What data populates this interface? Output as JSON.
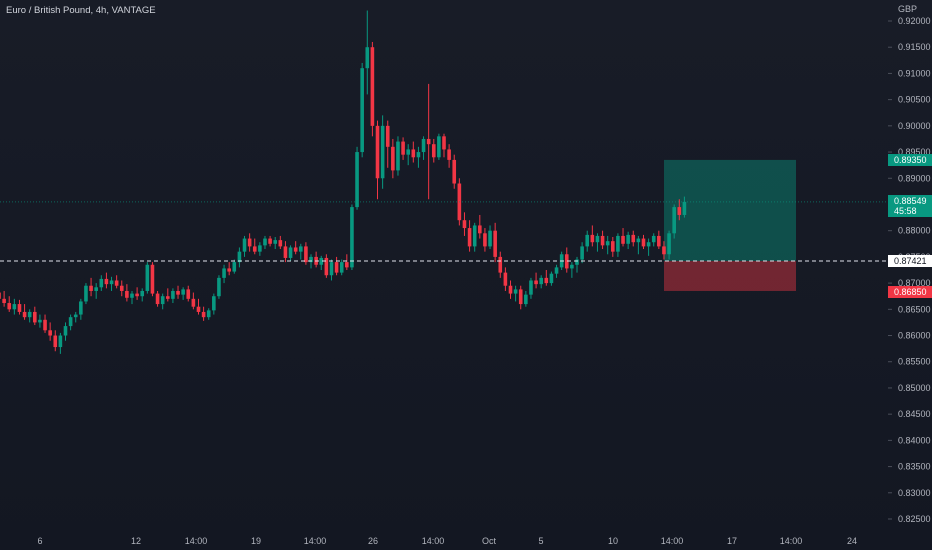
{
  "header": {
    "symbol_title": "Euro / British Pound, 4h, VANTAGE",
    "currency": "GBP"
  },
  "badges": {
    "current_price": "0.88549",
    "countdown": "45:58",
    "take_profit": "0.89350",
    "stop_loss": "0.86850",
    "entry": "0.87421"
  },
  "colors": {
    "up": "#089981",
    "down": "#f23645",
    "background": "#131722",
    "text": "#b2b5be",
    "grid": "#1e222d"
  },
  "chart_data": {
    "type": "candlestick",
    "title": "Euro / British Pound, 4h, VANTAGE",
    "xlabel": "",
    "ylabel": "",
    "ylim": [
      0.823,
      0.922
    ],
    "y_ticks": [
      "0.92000",
      "0.91500",
      "0.91000",
      "0.90500",
      "0.90000",
      "0.89500",
      "0.89000",
      "0.88500",
      "0.88000",
      "0.87500",
      "0.87000",
      "0.86500",
      "0.86000",
      "0.85500",
      "0.85000",
      "0.84500",
      "0.84000",
      "0.83500",
      "0.83000",
      "0.82500"
    ],
    "x_ticks": [
      "6",
      "12",
      "14:00",
      "19",
      "14:00",
      "26",
      "14:00",
      "Oct",
      "5",
      "10",
      "14:00",
      "17",
      "14:00",
      "24"
    ],
    "grid": false,
    "current_price": 0.88549,
    "position": {
      "side": "long",
      "entry": 0.87421,
      "take_profit": 0.8935,
      "stop_loss": 0.8685
    },
    "candles": [
      {
        "o": 0.8682,
        "h": 0.87,
        "l": 0.8665,
        "c": 0.867
      },
      {
        "o": 0.867,
        "h": 0.8685,
        "l": 0.8655,
        "c": 0.8662
      },
      {
        "o": 0.8662,
        "h": 0.8675,
        "l": 0.8645,
        "c": 0.865
      },
      {
        "o": 0.865,
        "h": 0.867,
        "l": 0.864,
        "c": 0.866
      },
      {
        "o": 0.866,
        "h": 0.8668,
        "l": 0.864,
        "c": 0.8645
      },
      {
        "o": 0.8645,
        "h": 0.866,
        "l": 0.863,
        "c": 0.8635
      },
      {
        "o": 0.8635,
        "h": 0.865,
        "l": 0.8625,
        "c": 0.8645
      },
      {
        "o": 0.8645,
        "h": 0.8655,
        "l": 0.862,
        "c": 0.8625
      },
      {
        "o": 0.8625,
        "h": 0.864,
        "l": 0.8615,
        "c": 0.863
      },
      {
        "o": 0.863,
        "h": 0.864,
        "l": 0.8605,
        "c": 0.861
      },
      {
        "o": 0.861,
        "h": 0.8625,
        "l": 0.859,
        "c": 0.86
      },
      {
        "o": 0.86,
        "h": 0.861,
        "l": 0.857,
        "c": 0.8578
      },
      {
        "o": 0.8578,
        "h": 0.8605,
        "l": 0.8565,
        "c": 0.86
      },
      {
        "o": 0.86,
        "h": 0.8625,
        "l": 0.859,
        "c": 0.8618
      },
      {
        "o": 0.8618,
        "h": 0.864,
        "l": 0.861,
        "c": 0.8635
      },
      {
        "o": 0.8635,
        "h": 0.8645,
        "l": 0.8625,
        "c": 0.864
      },
      {
        "o": 0.864,
        "h": 0.867,
        "l": 0.863,
        "c": 0.8665
      },
      {
        "o": 0.8665,
        "h": 0.87,
        "l": 0.866,
        "c": 0.8695
      },
      {
        "o": 0.8695,
        "h": 0.871,
        "l": 0.8675,
        "c": 0.8685
      },
      {
        "o": 0.8685,
        "h": 0.87,
        "l": 0.867,
        "c": 0.8692
      },
      {
        "o": 0.8692,
        "h": 0.8715,
        "l": 0.8685,
        "c": 0.8708
      },
      {
        "o": 0.8708,
        "h": 0.872,
        "l": 0.869,
        "c": 0.8698
      },
      {
        "o": 0.8698,
        "h": 0.8712,
        "l": 0.8685,
        "c": 0.8705
      },
      {
        "o": 0.8705,
        "h": 0.8715,
        "l": 0.869,
        "c": 0.8695
      },
      {
        "o": 0.8695,
        "h": 0.8705,
        "l": 0.8675,
        "c": 0.8685
      },
      {
        "o": 0.8685,
        "h": 0.8698,
        "l": 0.8665,
        "c": 0.8672
      },
      {
        "o": 0.8672,
        "h": 0.8685,
        "l": 0.866,
        "c": 0.868
      },
      {
        "o": 0.868,
        "h": 0.8692,
        "l": 0.8668,
        "c": 0.8675
      },
      {
        "o": 0.8675,
        "h": 0.869,
        "l": 0.8665,
        "c": 0.8685
      },
      {
        "o": 0.8685,
        "h": 0.874,
        "l": 0.868,
        "c": 0.8735
      },
      {
        "o": 0.8735,
        "h": 0.874,
        "l": 0.8675,
        "c": 0.868
      },
      {
        "o": 0.868,
        "h": 0.8685,
        "l": 0.8655,
        "c": 0.866
      },
      {
        "o": 0.866,
        "h": 0.868,
        "l": 0.865,
        "c": 0.8675
      },
      {
        "o": 0.8675,
        "h": 0.869,
        "l": 0.8665,
        "c": 0.867
      },
      {
        "o": 0.867,
        "h": 0.869,
        "l": 0.8662,
        "c": 0.8685
      },
      {
        "o": 0.8685,
        "h": 0.8695,
        "l": 0.867,
        "c": 0.8678
      },
      {
        "o": 0.8678,
        "h": 0.8692,
        "l": 0.8668,
        "c": 0.8688
      },
      {
        "o": 0.8688,
        "h": 0.8695,
        "l": 0.8665,
        "c": 0.867
      },
      {
        "o": 0.867,
        "h": 0.8682,
        "l": 0.865,
        "c": 0.8655
      },
      {
        "o": 0.8655,
        "h": 0.867,
        "l": 0.864,
        "c": 0.8645
      },
      {
        "o": 0.8645,
        "h": 0.8655,
        "l": 0.8628,
        "c": 0.8635
      },
      {
        "o": 0.8635,
        "h": 0.8652,
        "l": 0.863,
        "c": 0.8648
      },
      {
        "o": 0.8648,
        "h": 0.868,
        "l": 0.864,
        "c": 0.8675
      },
      {
        "o": 0.8675,
        "h": 0.8715,
        "l": 0.867,
        "c": 0.871
      },
      {
        "o": 0.871,
        "h": 0.8735,
        "l": 0.87,
        "c": 0.8728
      },
      {
        "o": 0.8728,
        "h": 0.874,
        "l": 0.8715,
        "c": 0.8722
      },
      {
        "o": 0.8722,
        "h": 0.8745,
        "l": 0.8718,
        "c": 0.874
      },
      {
        "o": 0.874,
        "h": 0.8768,
        "l": 0.873,
        "c": 0.876
      },
      {
        "o": 0.876,
        "h": 0.879,
        "l": 0.875,
        "c": 0.8785
      },
      {
        "o": 0.8785,
        "h": 0.8795,
        "l": 0.876,
        "c": 0.877
      },
      {
        "o": 0.877,
        "h": 0.8785,
        "l": 0.8755,
        "c": 0.876
      },
      {
        "o": 0.876,
        "h": 0.8778,
        "l": 0.8752,
        "c": 0.8772
      },
      {
        "o": 0.8772,
        "h": 0.879,
        "l": 0.8765,
        "c": 0.8785
      },
      {
        "o": 0.8785,
        "h": 0.879,
        "l": 0.877,
        "c": 0.8775
      },
      {
        "o": 0.8775,
        "h": 0.8788,
        "l": 0.8765,
        "c": 0.8782
      },
      {
        "o": 0.8782,
        "h": 0.879,
        "l": 0.8765,
        "c": 0.877
      },
      {
        "o": 0.877,
        "h": 0.878,
        "l": 0.874,
        "c": 0.8748
      },
      {
        "o": 0.8748,
        "h": 0.8772,
        "l": 0.8742,
        "c": 0.8768
      },
      {
        "o": 0.8768,
        "h": 0.878,
        "l": 0.8755,
        "c": 0.876
      },
      {
        "o": 0.876,
        "h": 0.8775,
        "l": 0.8745,
        "c": 0.877
      },
      {
        "o": 0.877,
        "h": 0.8778,
        "l": 0.8735,
        "c": 0.874
      },
      {
        "o": 0.874,
        "h": 0.8755,
        "l": 0.8728,
        "c": 0.875
      },
      {
        "o": 0.875,
        "h": 0.876,
        "l": 0.873,
        "c": 0.8735
      },
      {
        "o": 0.8735,
        "h": 0.8752,
        "l": 0.8725,
        "c": 0.8748
      },
      {
        "o": 0.8748,
        "h": 0.8755,
        "l": 0.871,
        "c": 0.8715
      },
      {
        "o": 0.8715,
        "h": 0.8745,
        "l": 0.8705,
        "c": 0.874
      },
      {
        "o": 0.874,
        "h": 0.875,
        "l": 0.8715,
        "c": 0.872
      },
      {
        "o": 0.872,
        "h": 0.8745,
        "l": 0.8715,
        "c": 0.874
      },
      {
        "o": 0.874,
        "h": 0.8755,
        "l": 0.8725,
        "c": 0.873
      },
      {
        "o": 0.873,
        "h": 0.885,
        "l": 0.8725,
        "c": 0.8845
      },
      {
        "o": 0.8845,
        "h": 0.896,
        "l": 0.884,
        "c": 0.895
      },
      {
        "o": 0.895,
        "h": 0.912,
        "l": 0.894,
        "c": 0.911
      },
      {
        "o": 0.911,
        "h": 0.922,
        "l": 0.906,
        "c": 0.915
      },
      {
        "o": 0.915,
        "h": 0.916,
        "l": 0.898,
        "c": 0.9
      },
      {
        "o": 0.9,
        "h": 0.901,
        "l": 0.886,
        "c": 0.89
      },
      {
        "o": 0.89,
        "h": 0.902,
        "l": 0.888,
        "c": 0.9
      },
      {
        "o": 0.9,
        "h": 0.901,
        "l": 0.892,
        "c": 0.896
      },
      {
        "o": 0.896,
        "h": 0.8975,
        "l": 0.89,
        "c": 0.8915
      },
      {
        "o": 0.8915,
        "h": 0.898,
        "l": 0.8905,
        "c": 0.897
      },
      {
        "o": 0.897,
        "h": 0.8978,
        "l": 0.8935,
        "c": 0.8945
      },
      {
        "o": 0.8945,
        "h": 0.8965,
        "l": 0.8925,
        "c": 0.8955
      },
      {
        "o": 0.8955,
        "h": 0.897,
        "l": 0.893,
        "c": 0.894
      },
      {
        "o": 0.894,
        "h": 0.896,
        "l": 0.892,
        "c": 0.895
      },
      {
        "o": 0.895,
        "h": 0.898,
        "l": 0.8935,
        "c": 0.8975
      },
      {
        "o": 0.8975,
        "h": 0.908,
        "l": 0.886,
        "c": 0.8965
      },
      {
        "o": 0.8965,
        "h": 0.8975,
        "l": 0.893,
        "c": 0.894
      },
      {
        "o": 0.894,
        "h": 0.8985,
        "l": 0.8935,
        "c": 0.898
      },
      {
        "o": 0.898,
        "h": 0.8985,
        "l": 0.894,
        "c": 0.8955
      },
      {
        "o": 0.8955,
        "h": 0.8965,
        "l": 0.892,
        "c": 0.8935
      },
      {
        "o": 0.8935,
        "h": 0.8945,
        "l": 0.888,
        "c": 0.889
      },
      {
        "o": 0.889,
        "h": 0.89,
        "l": 0.881,
        "c": 0.882
      },
      {
        "o": 0.882,
        "h": 0.8835,
        "l": 0.879,
        "c": 0.8805
      },
      {
        "o": 0.8805,
        "h": 0.882,
        "l": 0.876,
        "c": 0.877
      },
      {
        "o": 0.877,
        "h": 0.8815,
        "l": 0.876,
        "c": 0.881
      },
      {
        "o": 0.881,
        "h": 0.883,
        "l": 0.8785,
        "c": 0.8795
      },
      {
        "o": 0.8795,
        "h": 0.8805,
        "l": 0.876,
        "c": 0.877
      },
      {
        "o": 0.877,
        "h": 0.881,
        "l": 0.8765,
        "c": 0.88
      },
      {
        "o": 0.88,
        "h": 0.8815,
        "l": 0.874,
        "c": 0.875
      },
      {
        "o": 0.875,
        "h": 0.876,
        "l": 0.871,
        "c": 0.872
      },
      {
        "o": 0.872,
        "h": 0.873,
        "l": 0.8685,
        "c": 0.8695
      },
      {
        "o": 0.8695,
        "h": 0.8705,
        "l": 0.867,
        "c": 0.868
      },
      {
        "o": 0.868,
        "h": 0.8695,
        "l": 0.8665,
        "c": 0.8688
      },
      {
        "o": 0.8688,
        "h": 0.8695,
        "l": 0.865,
        "c": 0.866
      },
      {
        "o": 0.866,
        "h": 0.8685,
        "l": 0.8655,
        "c": 0.8678
      },
      {
        "o": 0.8678,
        "h": 0.871,
        "l": 0.867,
        "c": 0.8705
      },
      {
        "o": 0.8705,
        "h": 0.872,
        "l": 0.869,
        "c": 0.8698
      },
      {
        "o": 0.8698,
        "h": 0.8715,
        "l": 0.869,
        "c": 0.871
      },
      {
        "o": 0.871,
        "h": 0.8725,
        "l": 0.8695,
        "c": 0.87
      },
      {
        "o": 0.87,
        "h": 0.8722,
        "l": 0.8695,
        "c": 0.8718
      },
      {
        "o": 0.8718,
        "h": 0.8735,
        "l": 0.871,
        "c": 0.873
      },
      {
        "o": 0.873,
        "h": 0.876,
        "l": 0.8725,
        "c": 0.8755
      },
      {
        "o": 0.8755,
        "h": 0.8768,
        "l": 0.872,
        "c": 0.8728
      },
      {
        "o": 0.8728,
        "h": 0.874,
        "l": 0.871,
        "c": 0.8735
      },
      {
        "o": 0.8735,
        "h": 0.875,
        "l": 0.872,
        "c": 0.8745
      },
      {
        "o": 0.8745,
        "h": 0.8778,
        "l": 0.8738,
        "c": 0.877
      },
      {
        "o": 0.877,
        "h": 0.88,
        "l": 0.876,
        "c": 0.8792
      },
      {
        "o": 0.8792,
        "h": 0.881,
        "l": 0.877,
        "c": 0.8778
      },
      {
        "o": 0.8778,
        "h": 0.8795,
        "l": 0.876,
        "c": 0.879
      },
      {
        "o": 0.879,
        "h": 0.88,
        "l": 0.8765,
        "c": 0.8772
      },
      {
        "o": 0.8772,
        "h": 0.879,
        "l": 0.8755,
        "c": 0.878
      },
      {
        "o": 0.878,
        "h": 0.8788,
        "l": 0.875,
        "c": 0.876
      },
      {
        "o": 0.876,
        "h": 0.8795,
        "l": 0.875,
        "c": 0.879
      },
      {
        "o": 0.879,
        "h": 0.8805,
        "l": 0.877,
        "c": 0.8775
      },
      {
        "o": 0.8775,
        "h": 0.8798,
        "l": 0.8765,
        "c": 0.8792
      },
      {
        "o": 0.8792,
        "h": 0.88,
        "l": 0.877,
        "c": 0.8778
      },
      {
        "o": 0.8778,
        "h": 0.879,
        "l": 0.8755,
        "c": 0.8785
      },
      {
        "o": 0.8785,
        "h": 0.8792,
        "l": 0.8765,
        "c": 0.877
      },
      {
        "o": 0.877,
        "h": 0.8785,
        "l": 0.8752,
        "c": 0.8778
      },
      {
        "o": 0.8778,
        "h": 0.8795,
        "l": 0.877,
        "c": 0.879
      },
      {
        "o": 0.879,
        "h": 0.88,
        "l": 0.8765,
        "c": 0.877
      },
      {
        "o": 0.877,
        "h": 0.878,
        "l": 0.8745,
        "c": 0.8755
      },
      {
        "o": 0.8755,
        "h": 0.88,
        "l": 0.8745,
        "c": 0.8795
      },
      {
        "o": 0.8795,
        "h": 0.885,
        "l": 0.8785,
        "c": 0.8845
      },
      {
        "o": 0.8845,
        "h": 0.886,
        "l": 0.882,
        "c": 0.883
      },
      {
        "o": 0.883,
        "h": 0.8865,
        "l": 0.8825,
        "c": 0.8855
      }
    ]
  }
}
